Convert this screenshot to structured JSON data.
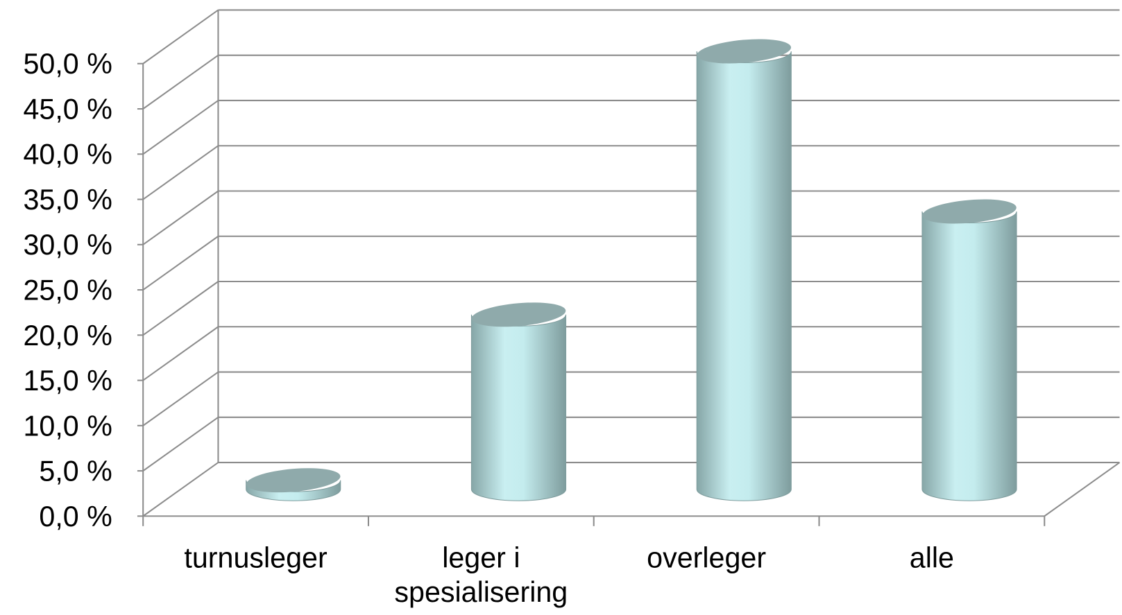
{
  "chart_data": {
    "type": "cylinder-bar",
    "categories": [
      "turnusleger",
      "leger i spesialisering",
      "overleger",
      "alle"
    ],
    "values": [
      1.0,
      19.3,
      48.4,
      30.7
    ],
    "color": "#c6ecee",
    "ylim": [
      0,
      50
    ],
    "yticks": [
      {
        "value": 0,
        "label": "0,0 %"
      },
      {
        "value": 5,
        "label": "5,0 %"
      },
      {
        "value": 10,
        "label": "10,0 %"
      },
      {
        "value": 15,
        "label": "15,0 %"
      },
      {
        "value": 20,
        "label": "20,0 %"
      },
      {
        "value": 25,
        "label": "25,0 %"
      },
      {
        "value": 30,
        "label": "30,0 %"
      },
      {
        "value": 35,
        "label": "35,0 %"
      },
      {
        "value": 40,
        "label": "40,0 %"
      },
      {
        "value": 45,
        "label": "45,0 %"
      },
      {
        "value": 50,
        "label": "50,0 %"
      }
    ],
    "grid": true
  }
}
